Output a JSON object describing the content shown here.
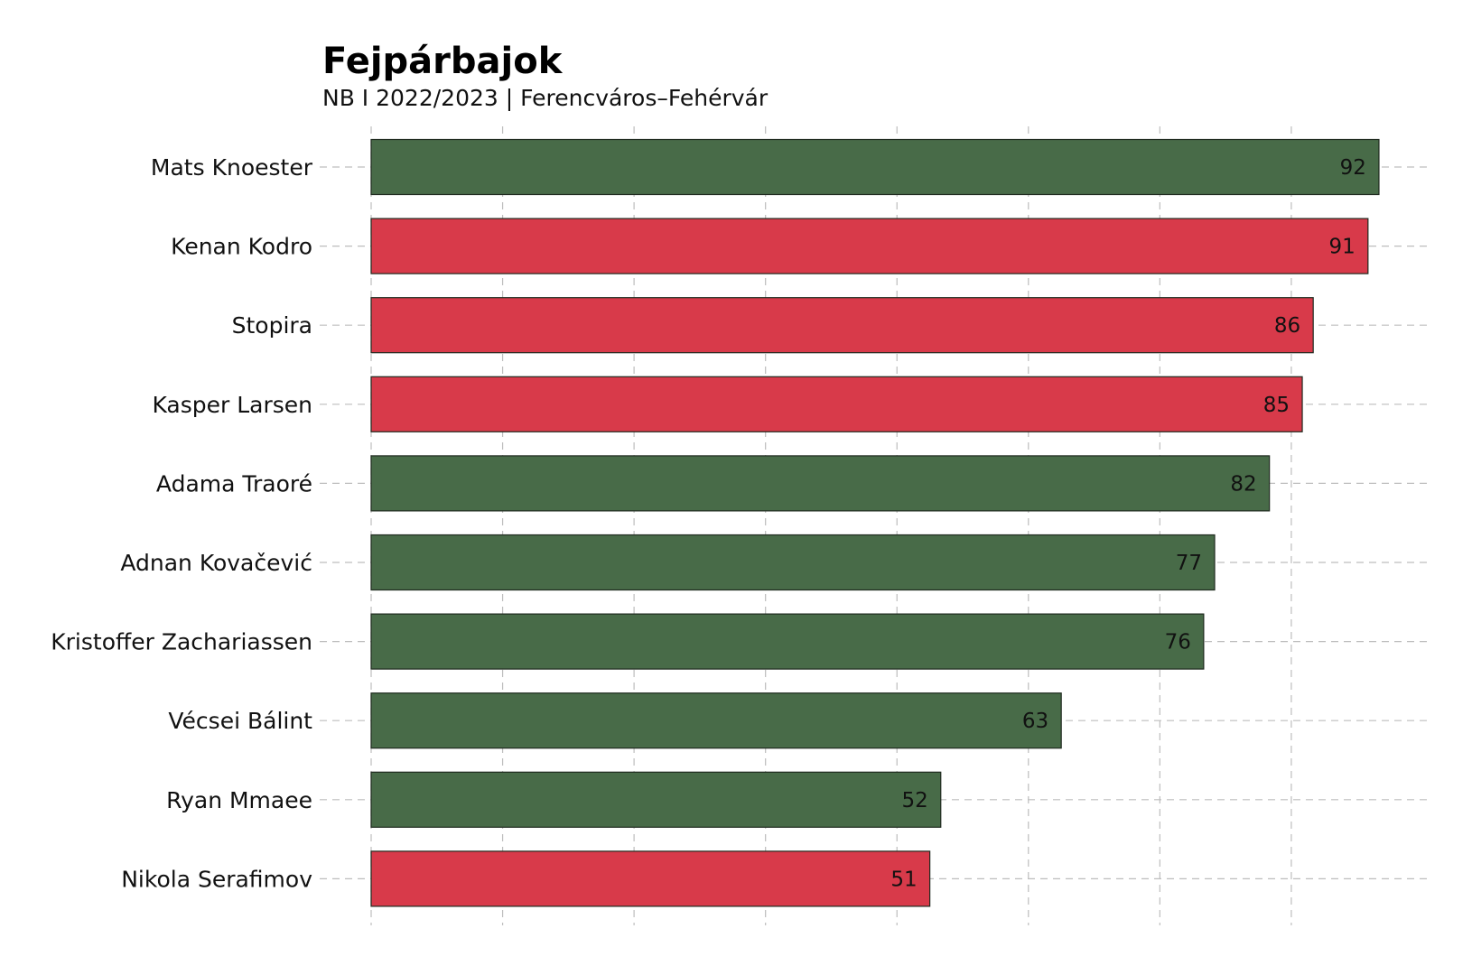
{
  "chart_data": {
    "type": "bar",
    "orientation": "horizontal",
    "title": "Fejpárbajok",
    "subtitle": "NB I 2022/2023 | Ferencváros–Fehérvár",
    "xlabel": "",
    "ylabel": "",
    "xlim": [
      0,
      95
    ],
    "grid": true,
    "categories": [
      "Mats Knoester",
      "Kenan Kodro",
      "Stopira",
      "Kasper Larsen",
      "Adama Traoré",
      "Adnan Kovačević",
      "Kristoffer Zachariassen",
      "Vécsei Bálint",
      "Ryan Mmaee",
      "Nikola Serafimov"
    ],
    "values": [
      92,
      91,
      86,
      85,
      82,
      77,
      76,
      63,
      52,
      51
    ],
    "colors": [
      "#486b48",
      "#d83a4a",
      "#d83a4a",
      "#d83a4a",
      "#486b48",
      "#486b48",
      "#486b48",
      "#486b48",
      "#486b48",
      "#d83a4a"
    ],
    "data_labels": [
      "92",
      "91",
      "86",
      "85",
      "82",
      "77",
      "76",
      "63",
      "52",
      "51"
    ]
  }
}
